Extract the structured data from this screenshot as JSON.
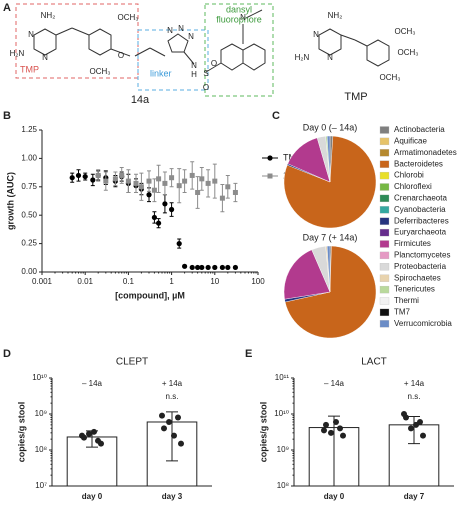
{
  "panel_a": {
    "label": "A",
    "box_tmp": "TMP",
    "box_linker": "linker",
    "box_dansyl": [
      "dansyl",
      "fluorophore"
    ],
    "compound": "14a",
    "reference": "TMP",
    "atoms_14a": [
      "NH₂",
      "N",
      "H₂N",
      "N",
      "OCH₃",
      "O",
      "OCH₃",
      "N",
      "N",
      "N",
      "N",
      "H",
      "S",
      "O",
      "O",
      "N"
    ],
    "atoms_tmp": [
      "NH₂",
      "N",
      "H₂N",
      "N",
      "OCH₃",
      "OCH₃",
      "OCH₃"
    ]
  },
  "chart_data": [
    {
      "panel": "B",
      "type": "scatter",
      "xscale": "log",
      "xlabel": "[compound], µM",
      "ylabel": "growth (AUC)",
      "xlim": [
        0.001,
        100
      ],
      "xticks": [
        0.001,
        0.01,
        0.1,
        1,
        10,
        100
      ],
      "ylim": [
        0,
        1.25
      ],
      "yticks": [
        {
          "value": 0,
          "label": "0.00"
        },
        0.25,
        {
          "value": 0.5,
          "label": "0.50"
        },
        0.75,
        {
          "value": 1,
          "label": "1.00"
        },
        1.25
      ],
      "legend": "upper right",
      "series": [
        {
          "name": "TMP",
          "color": "#000000",
          "marker": "circle",
          "x": [
            0.005,
            0.007,
            0.01,
            0.015,
            0.02,
            0.03,
            0.05,
            0.07,
            0.1,
            0.15,
            0.2,
            0.3,
            0.4,
            0.5,
            0.7,
            1,
            1.5,
            2,
            3,
            4,
            5,
            7,
            10,
            15,
            20,
            30
          ],
          "values": [
            0.83,
            0.85,
            0.84,
            0.81,
            0.85,
            0.83,
            0.8,
            0.84,
            0.78,
            0.76,
            0.73,
            0.68,
            0.48,
            0.43,
            0.6,
            0.55,
            0.25,
            0.05,
            0.04,
            0.04,
            0.04,
            0.04,
            0.04,
            0.04,
            0.04,
            0.04
          ],
          "errors": [
            0.04,
            0.05,
            0.03,
            0.05,
            0.04,
            0.06,
            0.05,
            0.04,
            0.08,
            0.06,
            0.05,
            0.06,
            0.05,
            0.04,
            0.08,
            0.06,
            0.04,
            0.01,
            0.01,
            0.01,
            0.01,
            0.01,
            0.01,
            0.01,
            0.01,
            0.01
          ]
        },
        {
          "name": "14a",
          "color": "#8c8c8c",
          "marker": "square",
          "x": [
            0.02,
            0.03,
            0.05,
            0.07,
            0.1,
            0.15,
            0.2,
            0.3,
            0.4,
            0.5,
            0.7,
            1,
            1.5,
            2,
            3,
            4,
            5,
            7,
            10,
            15,
            20,
            30
          ],
          "values": [
            0.85,
            0.8,
            0.82,
            0.85,
            0.8,
            0.78,
            0.75,
            0.8,
            0.72,
            0.82,
            0.78,
            0.83,
            0.76,
            0.8,
            0.85,
            0.7,
            0.82,
            0.78,
            0.8,
            0.65,
            0.75,
            0.7
          ],
          "errors": [
            0.05,
            0.08,
            0.06,
            0.07,
            0.1,
            0.08,
            0.12,
            0.09,
            0.1,
            0.12,
            0.1,
            0.08,
            0.15,
            0.1,
            0.12,
            0.14,
            0.1,
            0.12,
            0.15,
            0.12,
            0.1,
            0.08
          ]
        }
      ]
    },
    {
      "panel": "C",
      "type": "pie",
      "categories": [
        "Actinobacteria",
        "Aquificae",
        "Armatimonadetes",
        "Bacteroidetes",
        "Chlorobi",
        "Chloroflexi",
        "Crenarchaeota",
        "Cyanobacteria",
        "Deferribacteres",
        "Euryarchaeota",
        "Firmicutes",
        "Planctomycetes",
        "Proteobacteria",
        "Spirochaetes",
        "Tenericutes",
        "Thermi",
        "TM7",
        "Verrucomicrobia"
      ],
      "colors": [
        "#7f7f7f",
        "#e6c36a",
        "#b5892f",
        "#c8651b",
        "#e8df2a",
        "#76b843",
        "#2e8b57",
        "#35a8a0",
        "#27347f",
        "#662d8c",
        "#b23a8e",
        "#e59ac4",
        "#d9d9d9",
        "#e8d3ae",
        "#b9d99c",
        "#f2f2f2",
        "#111111",
        "#6b8cc6"
      ],
      "series": [
        {
          "name": "Day 0 (– 14a)",
          "values": [
            1,
            0,
            0,
            80,
            0,
            0,
            0,
            0,
            0.5,
            0,
            14,
            0,
            3,
            0,
            0.5,
            0,
            0,
            1
          ]
        },
        {
          "name": "Day 7 (+ 14a)",
          "values": [
            0.5,
            0,
            0,
            71,
            0,
            0,
            0,
            0,
            1,
            0,
            21,
            0,
            5,
            0.5,
            0,
            0,
            0,
            1
          ]
        }
      ]
    },
    {
      "panel": "D",
      "type": "bar",
      "title": "CLEPT",
      "ylabel": "copies/g stool",
      "yscale": "log",
      "ylim": [
        10000000,
        10000000000
      ],
      "yticks": [
        {
          "value": 10000000,
          "label": "10⁷"
        },
        {
          "value": 100000000,
          "label": "10⁸"
        },
        {
          "value": 1000000000,
          "label": "10⁹"
        },
        {
          "value": 10000000000,
          "label": "10¹⁰"
        }
      ],
      "categories": [
        "day 0",
        "day 3"
      ],
      "annotations": [
        "– 14a",
        "+ 14a"
      ],
      "comparison_label": "n.s.",
      "color": "#ffffff",
      "values": [
        230000000,
        600000000
      ],
      "errors": [
        110000000,
        550000000
      ],
      "points": [
        [
          220000000,
          180000000,
          280000000,
          150000000,
          320000000,
          250000000
        ],
        [
          400000000,
          800000000,
          600000000,
          150000000,
          250000000,
          900000000
        ]
      ]
    },
    {
      "panel": "E",
      "type": "bar",
      "title": "LACT",
      "ylabel": "copies/g stool",
      "yscale": "log",
      "ylim": [
        100000000,
        100000000000
      ],
      "yticks": [
        {
          "value": 100000000,
          "label": "10⁸"
        },
        {
          "value": 1000000000,
          "label": "10⁹"
        },
        {
          "value": 10000000000,
          "label": "10¹⁰"
        },
        {
          "value": 100000000000,
          "label": "10¹¹"
        }
      ],
      "categories": [
        "day 0",
        "day 7"
      ],
      "annotations": [
        "– 14a",
        "+ 14a"
      ],
      "comparison_label": "n.s.",
      "color": "#ffffff",
      "values": [
        4200000000,
        5000000000
      ],
      "errors": [
        4500000000,
        3500000000
      ],
      "points": [
        [
          5000000000,
          4000000000,
          3000000000,
          2500000000,
          6000000000,
          3500000000
        ],
        [
          8000000000,
          6000000000,
          4000000000,
          2500000000,
          5000000000,
          10000000000
        ]
      ]
    }
  ]
}
